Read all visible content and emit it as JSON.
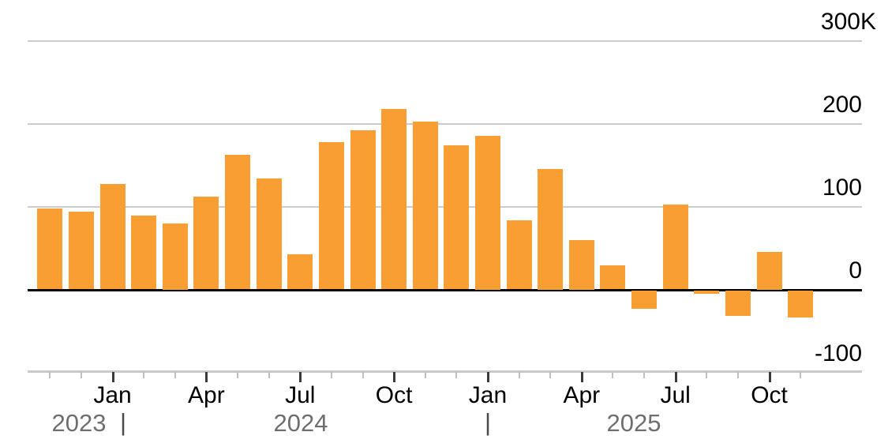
{
  "chart_data": {
    "type": "bar",
    "unit": "thousands (K)",
    "x": [
      "Nov 2023",
      "Dec 2023",
      "Jan 2024",
      "Feb 2024",
      "Mar 2024",
      "Apr 2024",
      "May 2024",
      "Jun 2024",
      "Jul 2024",
      "Aug 2024",
      "Sep 2024",
      "Oct 2024",
      "Nov 2024",
      "Dec 2024",
      "Jan 2025",
      "Feb 2025",
      "Mar 2025",
      "Apr 2025",
      "May 2025",
      "Jun 2025",
      "Jul 2025",
      "Aug 2025",
      "Sep 2025",
      "Oct 2025",
      "Nov 2025"
    ],
    "values": [
      98,
      94,
      127,
      89,
      80,
      112,
      162,
      134,
      42,
      178,
      192,
      218,
      202,
      174,
      185,
      83,
      145,
      60,
      29,
      -22,
      102,
      -4,
      -30,
      45,
      -32
    ],
    "ylim": [
      -100,
      300
    ],
    "y_ticks": [
      {
        "value": 300,
        "label": "300K"
      },
      {
        "value": 200,
        "label": "200"
      },
      {
        "value": 100,
        "label": "100"
      },
      {
        "value": 0,
        "label": "0"
      },
      {
        "value": -100,
        "label": "-100"
      }
    ],
    "x_major_tick_labels": [
      "Jan",
      "Apr",
      "Jul",
      "Oct",
      "Jan",
      "Apr",
      "Jul",
      "Oct"
    ],
    "year_labels": [
      "2023",
      "2024",
      "2025"
    ],
    "year_separator": "|",
    "grid": true,
    "legend": "none",
    "colors": {
      "bar": "#F99E33",
      "grid": "#CCCCCC",
      "zero_line": "#000000",
      "axis_line": "#C9C9C9",
      "tick_major": "#3A3A3A",
      "tick_minor": "#BFBFBF",
      "axis_label": "#000000",
      "year_label": "#6E6E6E"
    }
  }
}
